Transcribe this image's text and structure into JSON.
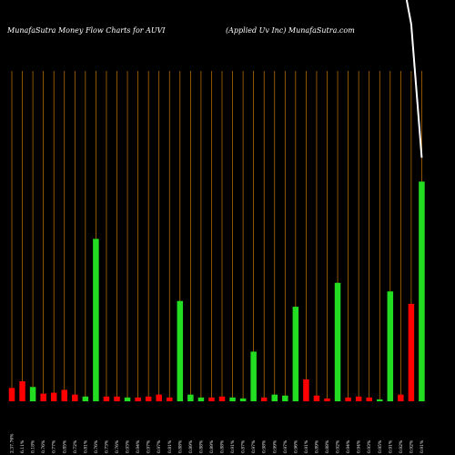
{
  "header": {
    "left": "MunafaSutra  Money Flow  Charts for AUVI",
    "right": "(Applied Uv    Inc) MunafaSutra.com"
  },
  "chart_data": {
    "type": "bar",
    "title": "MunafaSutra  Money Flow  Charts for AUVI",
    "subtitle": "(Applied Uv    Inc) MunafaSutra.com",
    "categories": [
      "2.37.76%",
      "6.11%",
      "0.18%",
      "0.76%",
      "0.77%",
      "0.85%",
      "0.72%",
      "0.81%",
      "0.76%",
      "0.73%",
      "0.76%",
      "0.93%",
      "0.94%",
      "0.97%",
      "0.97%",
      "0.81%",
      "0.88%",
      "0.89%",
      "0.88%",
      "0.89%",
      "0.88%",
      "0.91%",
      "0.87%",
      "0.97%",
      "0.98%",
      "0.99%",
      "0.97%",
      "0.96%",
      "0.91%",
      "0.89%",
      "0.88%",
      "0.92%",
      "0.94%",
      "0.94%",
      "0.93%",
      "0.95%",
      "0.91%",
      "0.92%",
      "0.92%",
      "0.91%"
    ],
    "values": [
      14,
      21,
      15,
      8,
      9,
      12,
      7,
      5,
      170,
      5,
      5,
      4,
      4,
      5,
      7,
      4,
      105,
      7,
      4,
      4,
      5,
      4,
      3,
      52,
      4,
      7,
      6,
      99,
      23,
      6,
      3,
      124,
      4,
      5,
      4,
      2,
      115,
      7,
      102,
      230
    ],
    "colors": [
      "red",
      "red",
      "green",
      "red",
      "red",
      "red",
      "red",
      "green",
      "green",
      "red",
      "red",
      "green",
      "red",
      "red",
      "red",
      "red",
      "green",
      "green",
      "green",
      "red",
      "red",
      "green",
      "green",
      "green",
      "red",
      "green",
      "green",
      "green",
      "red",
      "red",
      "red",
      "green",
      "red",
      "red",
      "red",
      "green",
      "green",
      "red",
      "red",
      "green"
    ],
    "price_line": [
      2.8,
      1.7
    ],
    "ylim": [
      0,
      420
    ],
    "grid": true,
    "palette": {
      "red": "#ff0000",
      "green": "#22dd22",
      "grid": "#c87a00",
      "line": "#ffffff"
    }
  }
}
